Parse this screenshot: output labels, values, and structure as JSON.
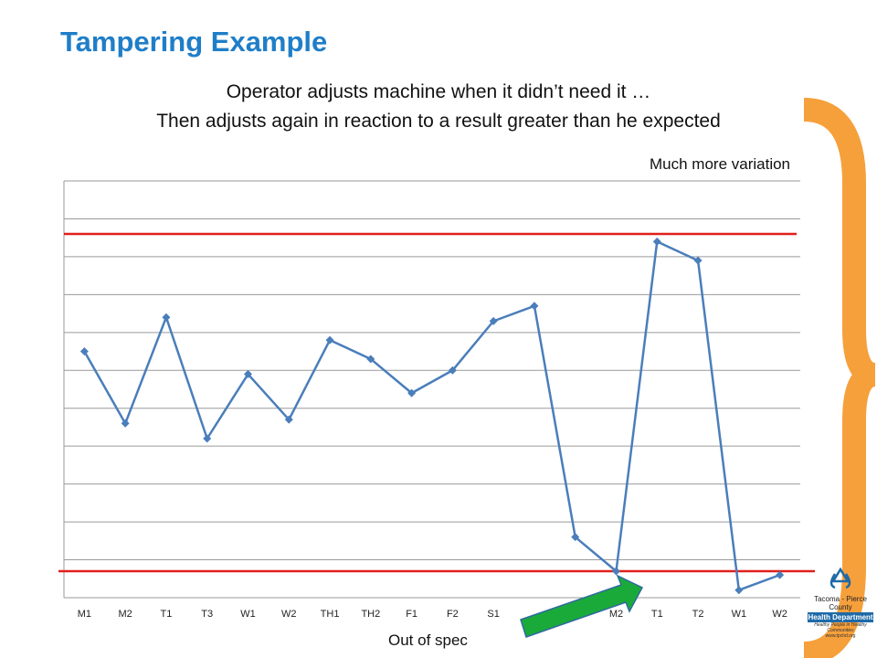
{
  "slide": {
    "title": "Tampering Example",
    "subtitle_line1": "Operator adjusts machine when it didn’t need it …",
    "subtitle_line2": "Then adjusts again in reaction to a result greater than he expected",
    "note_variation": "Much more variation",
    "note_out_of_spec": "Out of spec"
  },
  "logo": {
    "name": "Tacoma - Pierce County",
    "badge": "Health Department",
    "tagline": "Healthy People in Healthy Communities",
    "url": "www.tpchd.org"
  },
  "colors": {
    "title": "#1f7ec8",
    "series": "#4a7ebb",
    "limit": "#e0201b",
    "brace": "#f6a03c",
    "arrow": "#1aaa3a",
    "grid": "#9a9a9a"
  },
  "chart_data": {
    "type": "line",
    "categories": [
      "M1",
      "M2",
      "T1",
      "T3",
      "W1",
      "W2",
      "TH1",
      "TH2",
      "F1",
      "F2",
      "S1",
      "",
      "",
      "M2",
      "T1",
      "T2",
      "W1",
      "W2"
    ],
    "values": [
      5.5,
      3.6,
      6.4,
      3.2,
      4.9,
      3.7,
      5.8,
      5.3,
      4.4,
      5.0,
      6.3,
      6.7,
      0.6,
      -0.3,
      8.4,
      7.9,
      -0.8,
      -0.4
    ],
    "ylim": [
      -1,
      10
    ],
    "grid": true,
    "upper_limit": 8.6,
    "lower_limit": -0.3,
    "xlabel": "",
    "ylabel": ""
  }
}
